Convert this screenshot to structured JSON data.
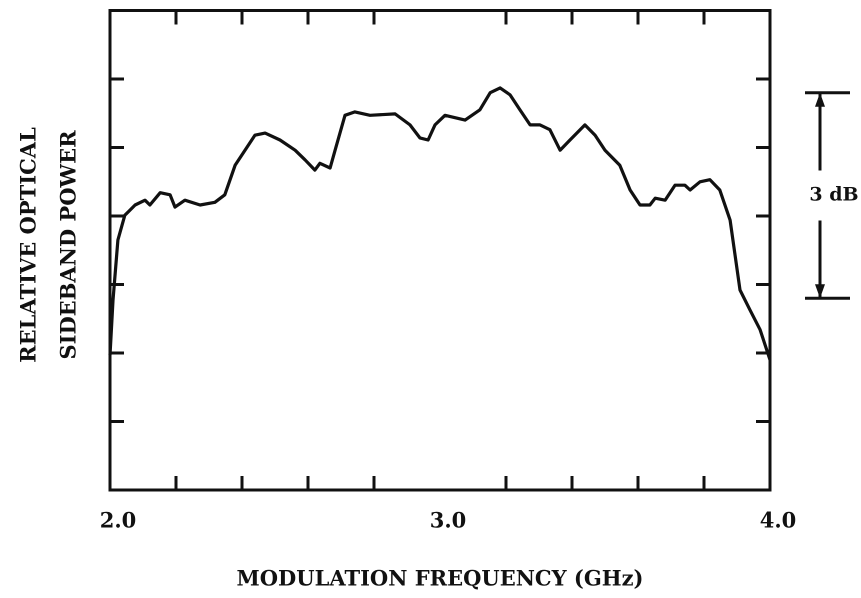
{
  "chart_data": {
    "type": "line",
    "xlabel": "MODULATION FREQUENCY (GHz)",
    "ylabel": [
      "RELATIVE OPTICAL",
      "SIDEBAND POWER"
    ],
    "xlim": [
      2,
      4
    ],
    "xticks": [
      {
        "value": 2,
        "label": "2.0"
      },
      {
        "value": 3,
        "label": "3.0"
      },
      {
        "value": 4,
        "label": "4.0"
      }
    ],
    "xminor_ticks": [
      2.2,
      2.4,
      2.6,
      2.8,
      3.2,
      3.4,
      3.6,
      3.8
    ],
    "ylim": [
      0,
      7
    ],
    "yticks": [
      1,
      2,
      3,
      4,
      5,
      6
    ],
    "scale_bar": {
      "label": "3 dB",
      "from": 2.8,
      "to": 5.8
    },
    "series": [
      {
        "color": "#111111",
        "x": [
          2.0,
          2.009,
          2.024,
          2.045,
          2.076,
          2.106,
          2.121,
          2.152,
          2.182,
          2.197,
          2.227,
          2.273,
          2.318,
          2.348,
          2.379,
          2.409,
          2.439,
          2.47,
          2.515,
          2.561,
          2.591,
          2.621,
          2.636,
          2.667,
          2.682,
          2.712,
          2.742,
          2.788,
          2.864,
          2.909,
          2.939,
          2.964,
          2.985,
          3.015,
          3.076,
          3.121,
          3.152,
          3.182,
          3.212,
          3.242,
          3.273,
          3.303,
          3.333,
          3.364,
          3.394,
          3.439,
          3.47,
          3.5,
          3.545,
          3.576,
          3.606,
          3.636,
          3.652,
          3.682,
          3.712,
          3.742,
          3.758,
          3.788,
          3.818,
          3.848,
          3.879,
          3.909,
          3.939,
          3.97,
          4.0
        ],
        "values": [
          1.97,
          2.77,
          3.65,
          4.01,
          4.16,
          4.23,
          4.16,
          4.34,
          4.31,
          4.13,
          4.23,
          4.16,
          4.2,
          4.31,
          4.74,
          4.96,
          5.18,
          5.21,
          5.11,
          4.96,
          4.82,
          4.67,
          4.77,
          4.7,
          4.96,
          5.47,
          5.52,
          5.47,
          5.49,
          5.33,
          5.14,
          5.11,
          5.33,
          5.47,
          5.4,
          5.55,
          5.8,
          5.87,
          5.77,
          5.55,
          5.33,
          5.33,
          5.26,
          4.96,
          5.11,
          5.33,
          5.18,
          4.96,
          4.74,
          4.38,
          4.16,
          4.16,
          4.26,
          4.23,
          4.45,
          4.45,
          4.38,
          4.5,
          4.53,
          4.38,
          3.94,
          2.92,
          2.63,
          2.34,
          1.9
        ]
      }
    ]
  }
}
